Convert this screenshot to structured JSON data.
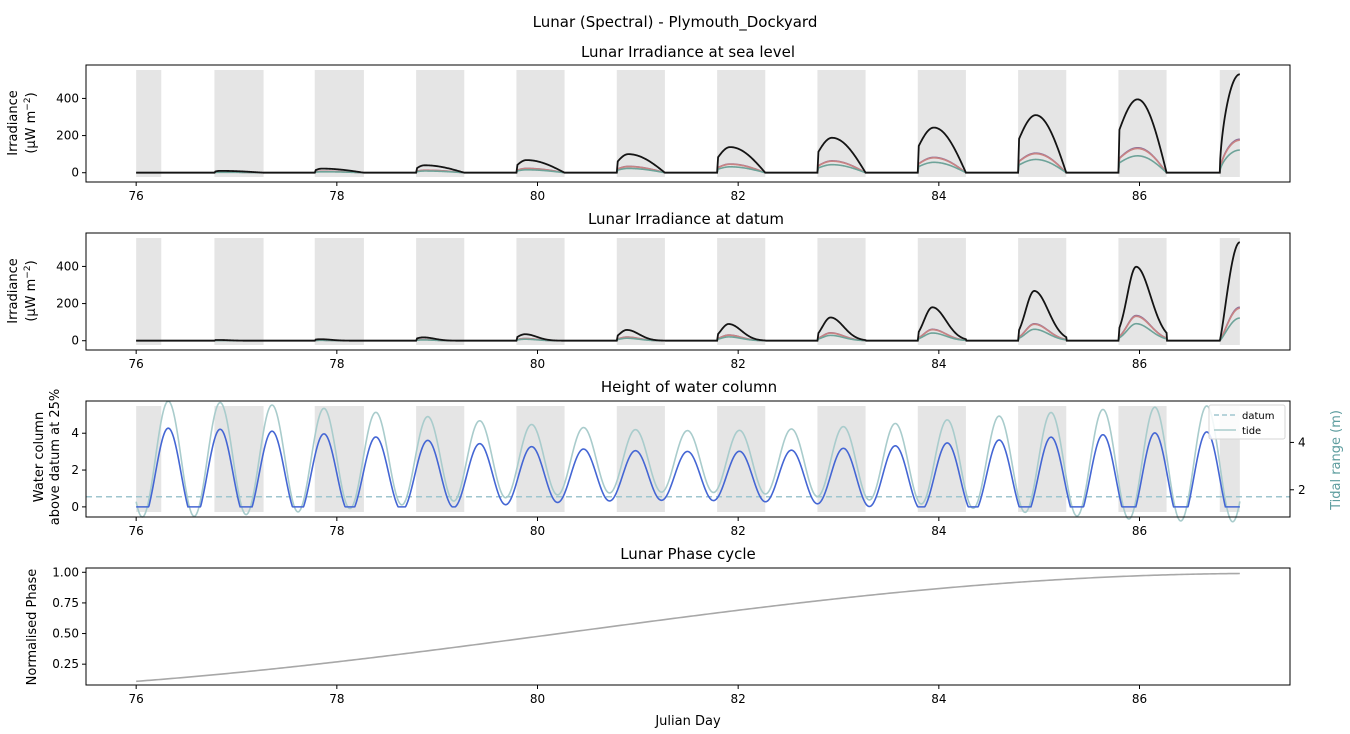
{
  "figure": {
    "title": "Lunar (Spectral) - Plymouth_Dockyard",
    "xlabel": "Julian Day"
  },
  "colors": {
    "shade": "#e5e5e5",
    "black": "#141414",
    "purple": "#8a6f9a",
    "red": "#c98383",
    "teal": "#6ea399",
    "blue_line": "#4466d4",
    "tide_line": "#a9cccc",
    "datum_line": "#9fc6cf",
    "right_axis": "#5f9ea0",
    "phase_line": "#a8a8a8"
  },
  "chart_data": [
    {
      "type": "line",
      "id": "sea-level",
      "title": "Lunar Irradiance at sea level",
      "ylabel_line1": "Irradiance",
      "ylabel_line2": "(μW m",
      "ylabel_sup": "−2",
      "ylabel_end": ")",
      "xlim": [
        75.5,
        87.5
      ],
      "ylim": [
        -50,
        580
      ],
      "xticks": [
        "76",
        "78",
        "80",
        "82",
        "84",
        "86"
      ],
      "yticks": [
        "0",
        "200",
        "400"
      ],
      "ytick_values": [
        0,
        200,
        400
      ],
      "night_windows": [
        [
          76.0,
          76.25
        ],
        [
          76.78,
          77.27
        ],
        [
          77.78,
          78.27
        ],
        [
          78.79,
          79.27
        ],
        [
          79.79,
          80.27
        ],
        [
          80.79,
          81.27
        ],
        [
          81.79,
          82.27
        ],
        [
          82.79,
          83.27
        ],
        [
          83.79,
          84.27
        ],
        [
          84.79,
          85.27
        ],
        [
          85.79,
          86.27
        ],
        [
          86.8,
          87.0
        ]
      ],
      "peaks": [
        0,
        10,
        22,
        40,
        68,
        100,
        138,
        188,
        243,
        310,
        395,
        530
      ],
      "series_ratios": {
        "purple": 0.34,
        "red": 0.33,
        "teal": 0.23
      }
    },
    {
      "type": "line",
      "id": "datum",
      "title": "Lunar Irradiance at datum",
      "ylabel_line1": "Irradiance",
      "ylabel_line2": "(μW m",
      "ylabel_sup": "−2",
      "ylabel_end": ")",
      "xlim": [
        75.5,
        87.5
      ],
      "ylim": [
        -50,
        580
      ],
      "xticks": [
        "76",
        "78",
        "80",
        "82",
        "84",
        "86"
      ],
      "yticks": [
        "0",
        "200",
        "400"
      ],
      "ytick_values": [
        0,
        200,
        400
      ],
      "peaks": [
        0,
        4,
        8,
        18,
        35,
        58,
        90,
        125,
        180,
        268,
        398,
        530
      ],
      "series_ratios": {
        "purple": 0.34,
        "red": 0.33,
        "teal": 0.23
      }
    },
    {
      "type": "line",
      "id": "water-column",
      "title": "Height of water column",
      "ylabel_line1": "Water column",
      "ylabel_line2": "above datum at 25%",
      "right_ylabel": "Tidal range (m)",
      "xlim": [
        75.5,
        87.5
      ],
      "ylim": [
        -0.55,
        5.75
      ],
      "right_ylim": [
        0.85,
        5.75
      ],
      "xticks": [
        "76",
        "78",
        "80",
        "82",
        "84",
        "86"
      ],
      "yticks": [
        "0",
        "2",
        "4"
      ],
      "ytick_values": [
        0,
        2,
        4
      ],
      "right_yticks": [
        "2",
        "4"
      ],
      "right_ytick_values": [
        2,
        4
      ],
      "datum_level": 0.55,
      "legend": [
        "datum",
        "tide"
      ],
      "legend_position": "top-right",
      "tide_mean": 3.2,
      "tide_amp_start": 2.45,
      "tide_amp_mid": 1.3,
      "tide_period_days": 0.5175
    },
    {
      "type": "line",
      "id": "phase",
      "title": "Lunar Phase cycle",
      "ylabel": "Normalised Phase",
      "xlim": [
        75.5,
        87.5
      ],
      "ylim": [
        0.08,
        1.035
      ],
      "xticks": [
        "76",
        "78",
        "80",
        "82",
        "84",
        "86"
      ],
      "yticks": [
        "0.25",
        "0.50",
        "0.75",
        "1.00"
      ],
      "ytick_values": [
        0.25,
        0.5,
        0.75,
        1.0
      ],
      "x_start": 76,
      "x_end": 87,
      "y_start": 0.11,
      "y_end": 0.99
    }
  ]
}
